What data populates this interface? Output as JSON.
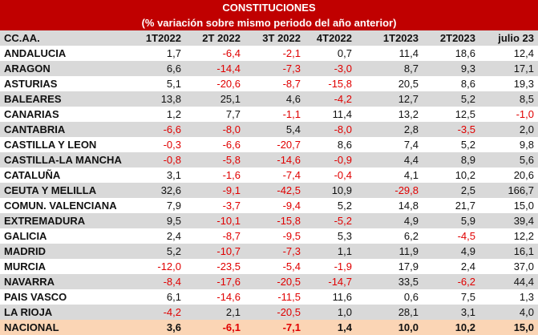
{
  "title": "CONSTITUCIONES",
  "subtitle": "(% variación sobre mismo periodo del año anterior)",
  "colors": {
    "title_bg": "#c00000",
    "header_bg": "#d9d9d9",
    "total_bg": "#fbd5b5",
    "negative": "#e00000"
  },
  "columns": [
    "CC.AA.",
    "1T2022",
    "2T 2022",
    "3T 2022",
    "4T2022",
    "1T2023",
    "2T2023",
    "julio 23"
  ],
  "rows": [
    {
      "region": "ANDALUCIA",
      "values": [
        "1,7",
        "-6,4",
        "-2,1",
        "0,7",
        "11,4",
        "18,6",
        "12,4"
      ]
    },
    {
      "region": "ARAGON",
      "values": [
        "6,6",
        "-14,4",
        "-7,3",
        "-3,0",
        "8,7",
        "9,3",
        "17,1"
      ]
    },
    {
      "region": "ASTURIAS",
      "values": [
        "5,1",
        "-20,6",
        "-8,7",
        "-15,8",
        "20,5",
        "8,6",
        "19,3"
      ]
    },
    {
      "region": "BALEARES",
      "values": [
        "13,8",
        "25,1",
        "4,6",
        "-4,2",
        "12,7",
        "5,2",
        "8,5"
      ]
    },
    {
      "region": "CANARIAS",
      "values": [
        "1,2",
        "7,7",
        "-1,1",
        "11,4",
        "13,2",
        "12,5",
        "-1,0"
      ]
    },
    {
      "region": "CANTABRIA",
      "values": [
        "-6,6",
        "-8,0",
        "5,4",
        "-8,0",
        "2,8",
        "-3,5",
        "2,0"
      ]
    },
    {
      "region": "CASTILLA Y LEON",
      "values": [
        "-0,3",
        "-6,6",
        "-20,7",
        "8,6",
        "7,4",
        "5,2",
        "9,8"
      ]
    },
    {
      "region": "CASTILLA-LA MANCHA",
      "values": [
        "-0,8",
        "-5,8",
        "-14,6",
        "-0,9",
        "4,4",
        "8,9",
        "5,6"
      ]
    },
    {
      "region": "CATALUÑA",
      "values": [
        "3,1",
        "-1,6",
        "-7,4",
        "-0,4",
        "4,1",
        "10,2",
        "20,6"
      ]
    },
    {
      "region": "CEUTA Y MELILLA",
      "values": [
        "32,6",
        "-9,1",
        "-42,5",
        "10,9",
        "-29,8",
        "2,5",
        "166,7"
      ]
    },
    {
      "region": "COMUN. VALENCIANA",
      "values": [
        "7,9",
        "-3,7",
        "-9,4",
        "5,2",
        "14,8",
        "21,7",
        "15,0"
      ]
    },
    {
      "region": "EXTREMADURA",
      "values": [
        "9,5",
        "-10,1",
        "-15,8",
        "-5,2",
        "4,9",
        "5,9",
        "39,4"
      ]
    },
    {
      "region": "GALICIA",
      "values": [
        "2,4",
        "-8,7",
        "-9,5",
        "5,3",
        "6,2",
        "-4,5",
        "12,2"
      ]
    },
    {
      "region": "MADRID",
      "values": [
        "5,2",
        "-10,7",
        "-7,3",
        "1,1",
        "11,9",
        "4,9",
        "16,1"
      ]
    },
    {
      "region": "MURCIA",
      "values": [
        "-12,0",
        "-23,5",
        "-5,4",
        "-1,9",
        "17,9",
        "2,4",
        "37,0"
      ]
    },
    {
      "region": "NAVARRA",
      "values": [
        "-8,4",
        "-17,6",
        "-20,5",
        "-14,7",
        "33,5",
        "-6,2",
        "44,4"
      ]
    },
    {
      "region": "PAIS VASCO",
      "values": [
        "6,1",
        "-14,6",
        "-11,5",
        "11,6",
        "0,6",
        "7,5",
        "1,3"
      ]
    },
    {
      "region": "LA RIOJA",
      "values": [
        "-4,2",
        "2,1",
        "-20,5",
        "1,0",
        "28,1",
        "3,1",
        "4,0"
      ]
    }
  ],
  "total": {
    "region": "NACIONAL",
    "values": [
      "3,6",
      "-6,1",
      "-7,1",
      "1,4",
      "10,0",
      "10,2",
      "15,0"
    ]
  }
}
